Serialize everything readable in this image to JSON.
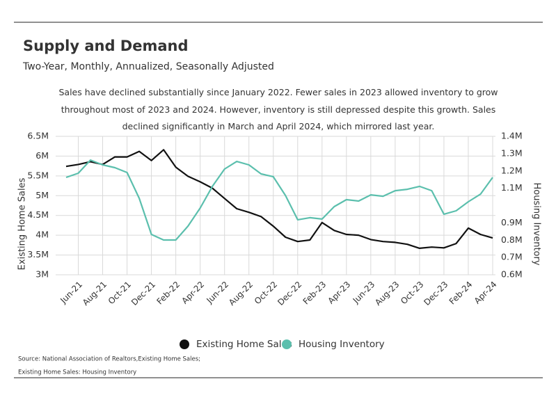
{
  "chart_data": {
    "type": "line",
    "title": "Supply and Demand",
    "subtitle": "Two-Year, Monthly, Annualized, Seasonally Adjusted",
    "description": "Sales have declined substantially since January 2022. Fewer sales in 2023 allowed inventory to grow throughout most of 2023 and 2024. However, inventory is still depressed despite this growth. Sales declined significantly in March and April 2024, which mirrored last year.",
    "ylabel": "Existing Home Sales",
    "y2label": "Housing Inventory",
    "source": [
      "Source:  National Association of Realtors,Existing Home Sales;",
      "Existing Home Sales: Housing Inventory"
    ],
    "categories": [
      null,
      "Jun-21",
      null,
      "Aug-21",
      null,
      "Oct-21",
      null,
      "Dec-21",
      null,
      "Feb-22",
      null,
      "Apr-22",
      null,
      "Jun-22",
      null,
      "Aug-22",
      null,
      "Oct-22",
      null,
      "Dec-22",
      null,
      "Feb-23",
      null,
      "Apr-23",
      null,
      "Jun-23",
      null,
      "Aug-23",
      null,
      "Oct-23",
      null,
      "Dec-23",
      null,
      "Feb-24",
      null,
      "Apr-24"
    ],
    "series": [
      {
        "name": "Existing Home Sales",
        "color": "#111111",
        "values": [
          5740000,
          5790000,
          5860000,
          5790000,
          5980000,
          5980000,
          6120000,
          5890000,
          6160000,
          5720000,
          5490000,
          5350000,
          5190000,
          4930000,
          4670000,
          4580000,
          4470000,
          4230000,
          3950000,
          3840000,
          3880000,
          4320000,
          4120000,
          4020000,
          4000000,
          3890000,
          3840000,
          3820000,
          3770000,
          3670000,
          3700000,
          3680000,
          3790000,
          4180000,
          4020000,
          3930000
        ]
      },
      {
        "name": "Housing Inventory",
        "color": "#5bbfad",
        "axis": "y2",
        "values": [
          1163000,
          1187000,
          1263000,
          1235000,
          1219000,
          1191000,
          1042000,
          833000,
          801000,
          801000,
          881000,
          986000,
          1111000,
          1211000,
          1255000,
          1235000,
          1183000,
          1167000,
          1058000,
          918000,
          930000,
          922000,
          994000,
          1034000,
          1026000,
          1062000,
          1054000,
          1086000,
          1094000,
          1111000,
          1086000,
          950000,
          970000,
          1022000,
          1066000,
          1163000
        ]
      }
    ],
    "ylim": [
      3000000,
      6500000
    ],
    "yticks": [
      {
        "value": 3000000,
        "label": "3M"
      },
      {
        "value": 3500000,
        "label": "3.5M"
      },
      {
        "value": 4000000,
        "label": "4M"
      },
      {
        "value": 4500000,
        "label": "4.5M"
      },
      {
        "value": 5000000,
        "label": "5M"
      },
      {
        "value": 5500000,
        "label": "5.5M"
      },
      {
        "value": 6000000,
        "label": "6M"
      },
      {
        "value": 6500000,
        "label": "6.5M"
      }
    ],
    "y2lim": [
      600000,
      1400000
    ],
    "y2ticks": [
      {
        "value": 600000,
        "label": "0.6M"
      },
      {
        "value": 700000,
        "label": "0.7M"
      },
      {
        "value": 800000,
        "label": "0.8M"
      },
      {
        "value": 900000,
        "label": "0.9M"
      },
      {
        "value": 1100000,
        "label": "1.1M"
      },
      {
        "value": 1200000,
        "label": "1.2M"
      },
      {
        "value": 1300000,
        "label": "1.3M"
      },
      {
        "value": 1400000,
        "label": "1.4M"
      }
    ],
    "grid": true
  }
}
